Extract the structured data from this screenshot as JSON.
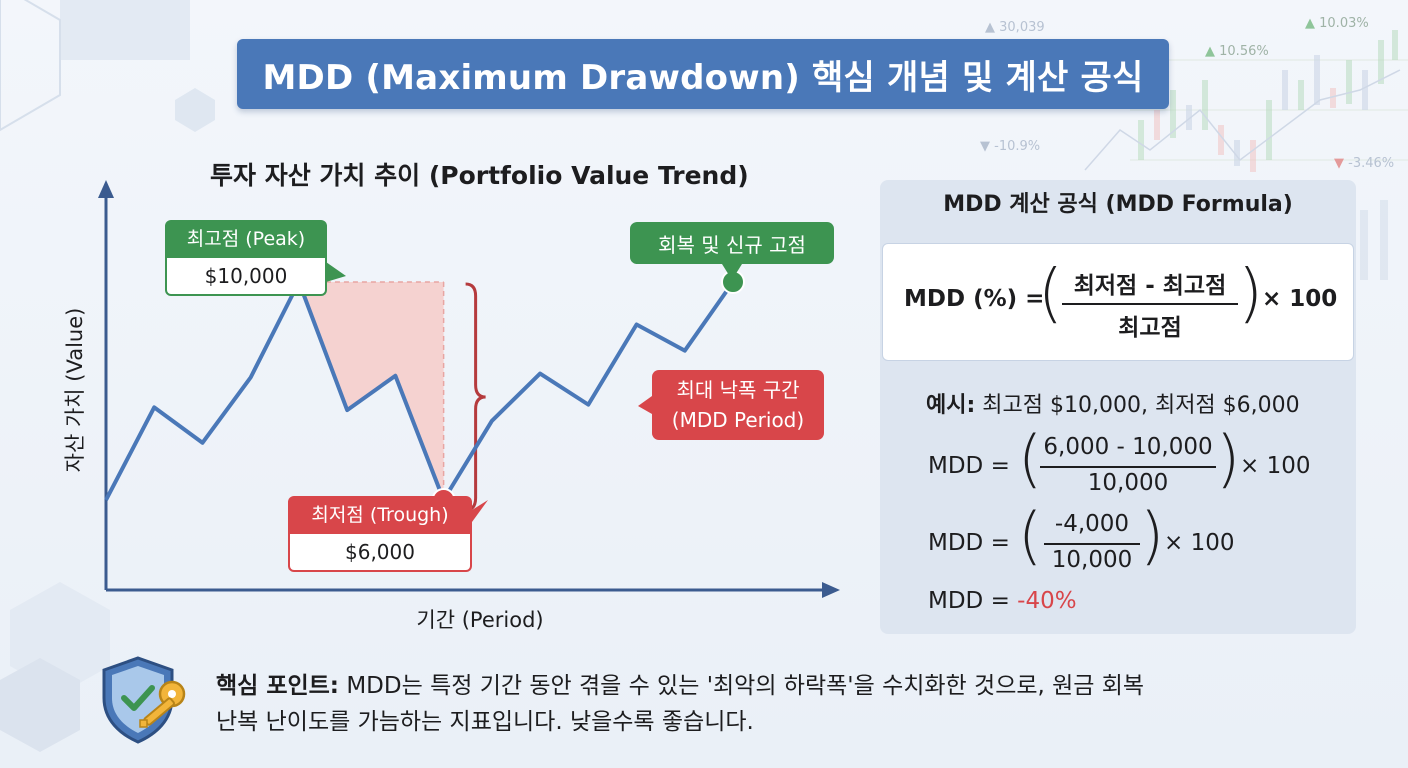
{
  "title": "MDD (Maximum Drawdown) 핵심 개념 및 계산 공식",
  "chart": {
    "title": "투자 자산 가치 추이 (Portfolio Value Trend)",
    "y_label": "자산 가치 (Value)",
    "x_label": "기간 (Period)",
    "peak_label": "최고점 (Peak)",
    "peak_value": "$10,000",
    "trough_label": "최저점 (Trough)",
    "trough_value": "$6,000",
    "new_high_label": "회복 및 신규 고점",
    "mdd_period_line1": "최대 낙폭 구간",
    "mdd_period_line2": "(MDD Period)"
  },
  "chart_data": {
    "type": "line",
    "title": "투자 자산 가치 추이 (Portfolio Value Trend)",
    "xlabel": "기간 (Period)",
    "ylabel": "자산 가치 (Value)",
    "series": [
      {
        "values": [
          6000,
          7700,
          7050,
          8250,
          10000,
          7650,
          8280,
          6000,
          7450,
          8320,
          7750,
          9220,
          8740,
          10000
        ]
      }
    ],
    "annotations": {
      "peak_index": 4,
      "trough_index": 7,
      "new_high_index": 13
    },
    "colors": {
      "line": "#4a78b8",
      "peak": "#3d9451",
      "trough": "#d8464a",
      "drawdown_fill": "#f6c9c6",
      "bracket": "#b53a3d"
    }
  },
  "formula": {
    "panel_title": "MDD 계산 공식 (MDD Formula)",
    "lhs": "MDD (%) =",
    "numerator": "최저점 - 최고점",
    "denominator": "최고점",
    "multiplier": "× 100"
  },
  "example": {
    "label": "예시:",
    "text": "최고점 $10,000, 최저점 $6,000",
    "step1_lhs": "MDD =",
    "step1_num": "6,000 - 10,000",
    "step1_den": "10,000",
    "step1_mult": "× 100",
    "step2_lhs": "MDD =",
    "step2_num": "-4,000",
    "step2_den": "10,000",
    "step2_mult": "× 100",
    "result_lhs": "MDD =",
    "result_value": "-40%"
  },
  "footer": {
    "label": "핵심 포인트:",
    "line1": "MDD는 특정 기간 동안 겪을 수 있는 '최악의 하락폭'을 수치화한 것으로, 원금 회복",
    "line2": "난복 난이도를 가늠하는 지표입니다. 낮을수록 좋습니다."
  },
  "decor": {
    "ticker_labels": [
      "30,039",
      "10.56%",
      "10.03%",
      "-10.9%",
      "-3.46%"
    ]
  }
}
